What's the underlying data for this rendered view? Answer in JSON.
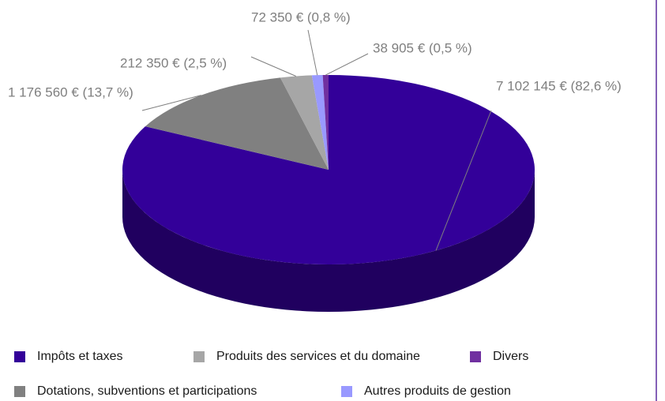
{
  "chart_data": {
    "type": "pie",
    "categories": [
      "Impôts et taxes",
      "Dotations, subventions et participations",
      "Produits des services et du domaine",
      "Autres produits de gestion",
      "Divers"
    ],
    "values": [
      7102145,
      1176560,
      212350,
      72350,
      38905
    ],
    "value_labels": [
      "7 102 145 € (82,6 %)",
      "1 176 560 € (13,7 %)",
      "212 350 € (2,5 %)",
      "72 350 € (0,8 %)",
      "38 905 € (0,5 %)"
    ],
    "colors": [
      "#330099",
      "#808080",
      "#a6a6a6",
      "#9999ff",
      "#7030a0"
    ],
    "legend": "bottom"
  }
}
